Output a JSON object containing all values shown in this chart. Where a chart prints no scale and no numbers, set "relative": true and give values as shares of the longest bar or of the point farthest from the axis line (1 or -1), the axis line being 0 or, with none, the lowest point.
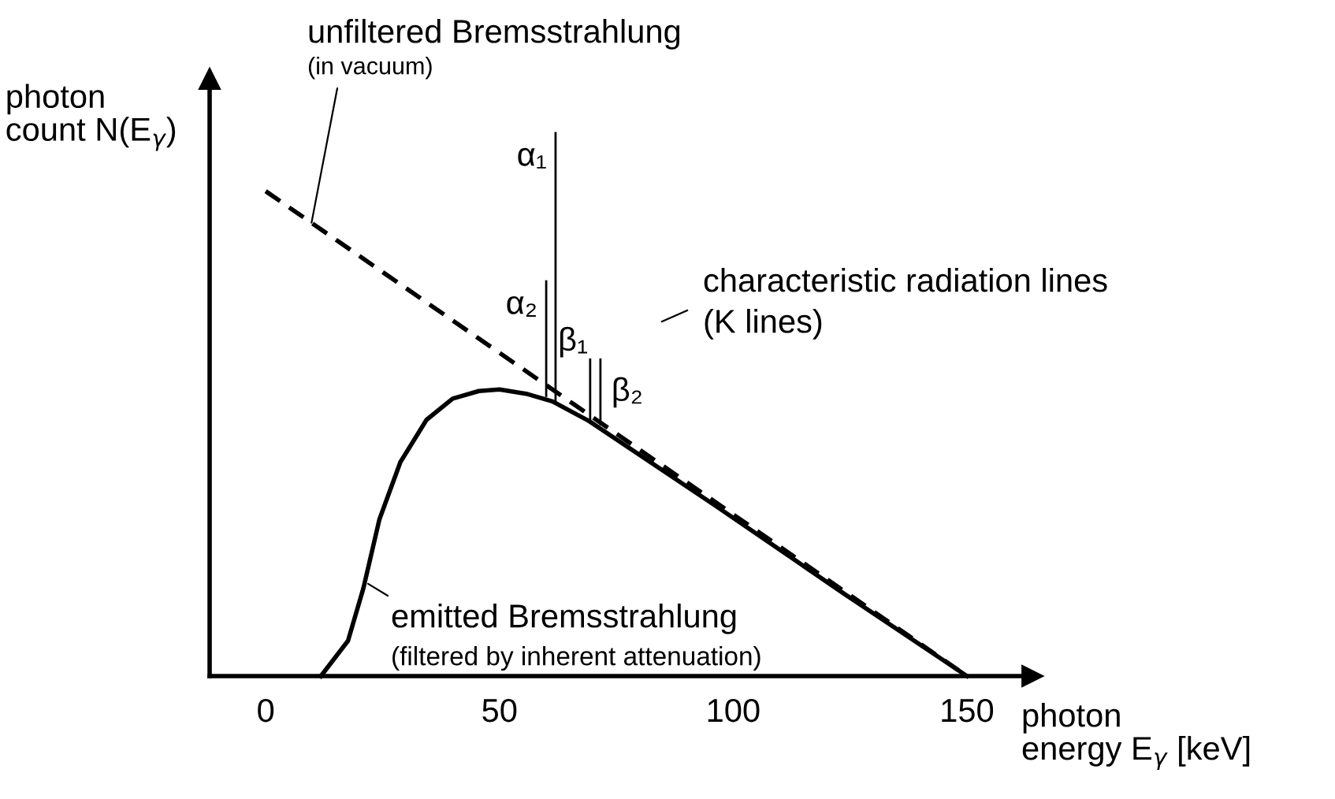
{
  "chart_data": {
    "type": "line",
    "relative": true,
    "ylabel": "photon\ncount N(E$_{γ}$)",
    "xlabel": "photon\nenergy E$_{γ}$ [keV]",
    "xlim": [
      -12,
      164
    ],
    "xticks": [
      0,
      50,
      100,
      150
    ],
    "grid": false,
    "legend": false,
    "marker": "none",
    "series": [
      {
        "color": "#000000",
        "line_style": "dashed",
        "x": [
          0,
          150
        ],
        "values": [
          0.893,
          0
        ]
      },
      {
        "color": "#000000",
        "line_style": "solid",
        "x": [
          11.8,
          17.6,
          20.9,
          24.3,
          28.8,
          34.4,
          40,
          45.6,
          50,
          55.7,
          61.3,
          69.1,
          96,
          124,
          150
        ],
        "values": [
          0,
          0.065,
          0.162,
          0.288,
          0.394,
          0.472,
          0.511,
          0.525,
          0.528,
          0.52,
          0.506,
          0.47,
          0.315,
          0.15,
          0
        ]
      },
      {
        "name": "α₁",
        "color": "#000000",
        "line_style": "solid",
        "x": [
          62,
          62
        ],
        "values": [
          0.506,
          1
        ]
      },
      {
        "name": "α₂",
        "color": "#000000",
        "line_style": "solid",
        "x": [
          60,
          60
        ],
        "values": [
          0.516,
          0.727
        ]
      },
      {
        "name": "β₁",
        "color": "#000000",
        "line_style": "solid",
        "x": [
          69.4,
          69.4
        ],
        "values": [
          0.47,
          0.583
        ]
      },
      {
        "name": "β₂",
        "color": "#000000",
        "line_style": "solid",
        "x": [
          71.6,
          71.6
        ],
        "values": [
          0.464,
          0.583
        ]
      }
    ],
    "annotations": [
      {
        "text": "unfiltered Bremsstrahlung",
        "x": 9.8,
        "y": 0.835
      },
      "(in vacuum)",
      "characteristic radiation lines",
      "(K lines)",
      {
        "text": "emitted Bremsstrahlung",
        "x": 21.9,
        "y": 0.17
      },
      "(filtered by inherent attenuation)"
    ]
  }
}
